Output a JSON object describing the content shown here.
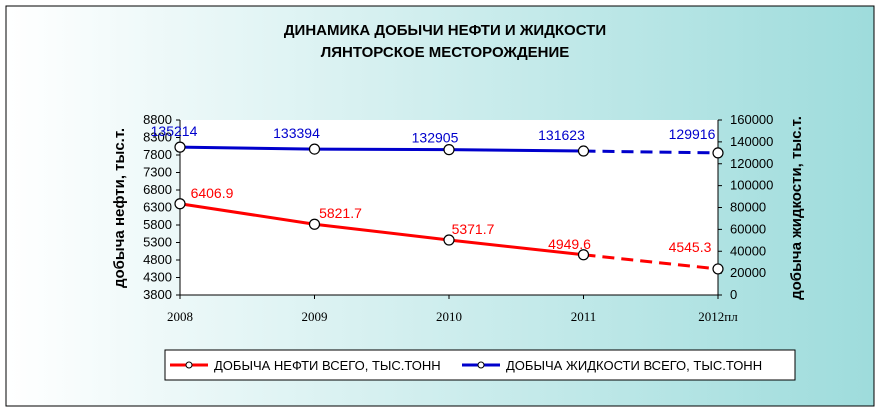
{
  "chart_data": {
    "type": "line",
    "title_line1": "ДИНАМИКА ДОБЫЧИ НЕФТИ И ЖИДКОСТИ",
    "title_line2": "ЛЯНТОРСКОЕ  МЕСТОРОЖДЕНИЕ",
    "categories": [
      "2008",
      "2009",
      "2010",
      "2011",
      "2012пл"
    ],
    "ylabel_left": "добыча нефти, тыс.т.",
    "ylabel_right": "добыча жидкости, тыс.т.",
    "ylim_left": [
      3800,
      8800
    ],
    "ylim_right": [
      0,
      160000
    ],
    "yticks_left": [
      "8800",
      "8300",
      "7800",
      "7300",
      "6800",
      "6300",
      "5800",
      "5300",
      "4800",
      "4300",
      "3800"
    ],
    "yticks_right": [
      "160000",
      "140000",
      "120000",
      "100000",
      "80000",
      "60000",
      "40000",
      "20000",
      "0"
    ],
    "series": [
      {
        "name": "ДОБЫЧА НЕФТИ ВСЕГО, ТЫС.ТОНН",
        "axis": "left",
        "color": "#ff0000",
        "values": [
          6406.9,
          5821.7,
          5371.7,
          4949.6,
          4545.3
        ],
        "labels": [
          "6406.9",
          "5821.7",
          "5371.7",
          "4949.6",
          "4545.3"
        ],
        "last_segment": "dashed"
      },
      {
        "name": "ДОБЫЧА ЖИДКОСТИ ВСЕГО, ТЫС.ТОНН",
        "axis": "right",
        "color": "#0000cc",
        "values": [
          135214,
          133394,
          132905,
          131623,
          129916
        ],
        "labels": [
          "135214",
          "133394",
          "132905",
          "131623",
          "129916"
        ],
        "last_segment": "dashed"
      }
    ],
    "grid": false,
    "legend_position": "bottom"
  },
  "colors": {
    "background_left": "#ffffff",
    "background_right": "#a0dede",
    "plot_background": "#ffffff"
  }
}
